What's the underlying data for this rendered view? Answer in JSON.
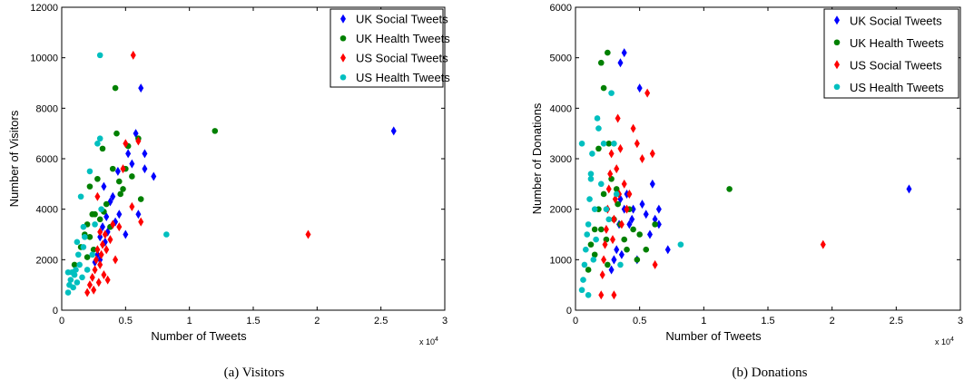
{
  "colors": {
    "uk_social": "#0000ff",
    "uk_health": "#008000",
    "us_social": "#ff0000",
    "us_health": "#00bfbf"
  },
  "chart_data": [
    {
      "type": "scatter",
      "caption": "(a) Visitors",
      "xlabel": "Number of Tweets",
      "ylabel": "Number of Visitors",
      "x_multiplier": "x 10",
      "x_multiplier_exp": "4",
      "xlim": [
        0,
        3
      ],
      "ylim": [
        0,
        12000
      ],
      "xticks": [
        0,
        0.5,
        1,
        1.5,
        2,
        2.5,
        3
      ],
      "xtick_labels": [
        "0",
        "0.5",
        "1",
        "1.5",
        "2",
        "2.5",
        "3"
      ],
      "yticks": [
        0,
        2000,
        4000,
        6000,
        8000,
        10000,
        12000
      ],
      "ytick_labels": [
        "0",
        "2000",
        "4000",
        "6000",
        "8000",
        "10000",
        "12000"
      ],
      "legend_position": "top-right",
      "series": [
        {
          "name": "UK Social Tweets",
          "marker": "diamond",
          "color_key": "uk_social",
          "points": [
            [
              0.28,
              2200
            ],
            [
              0.3,
              2900
            ],
            [
              0.32,
              3300
            ],
            [
              0.33,
              4900
            ],
            [
              0.35,
              3700
            ],
            [
              0.36,
              3100
            ],
            [
              0.38,
              4300
            ],
            [
              0.4,
              4500
            ],
            [
              0.42,
              3500
            ],
            [
              0.44,
              5500
            ],
            [
              0.45,
              3800
            ],
            [
              0.5,
              3000
            ],
            [
              0.52,
              6200
            ],
            [
              0.55,
              5800
            ],
            [
              0.58,
              7000
            ],
            [
              0.6,
              3800
            ],
            [
              0.62,
              8800
            ],
            [
              0.65,
              6200
            ],
            [
              0.65,
              5600
            ],
            [
              0.72,
              5300
            ],
            [
              2.6,
              7100
            ],
            [
              0.3,
              2000
            ],
            [
              0.34,
              2700
            ],
            [
              0.26,
              1900
            ]
          ]
        },
        {
          "name": "UK Health Tweets",
          "marker": "circle",
          "color_key": "uk_health",
          "points": [
            [
              0.1,
              1800
            ],
            [
              0.15,
              2500
            ],
            [
              0.18,
              3000
            ],
            [
              0.2,
              3400
            ],
            [
              0.22,
              2900
            ],
            [
              0.22,
              4900
            ],
            [
              0.24,
              3800
            ],
            [
              0.25,
              2400
            ],
            [
              0.28,
              5200
            ],
            [
              0.3,
              3600
            ],
            [
              0.32,
              6400
            ],
            [
              0.35,
              4200
            ],
            [
              0.38,
              3300
            ],
            [
              0.4,
              5600
            ],
            [
              0.42,
              8800
            ],
            [
              0.43,
              7000
            ],
            [
              0.45,
              5100
            ],
            [
              0.48,
              4800
            ],
            [
              0.5,
              5600
            ],
            [
              0.52,
              6500
            ],
            [
              0.55,
              5300
            ],
            [
              0.62,
              4400
            ],
            [
              0.6,
              6800
            ],
            [
              1.2,
              7100
            ],
            [
              0.2,
              2100
            ],
            [
              0.26,
              3800
            ],
            [
              0.33,
              3900
            ],
            [
              0.46,
              4600
            ]
          ]
        },
        {
          "name": "US Social Tweets",
          "marker": "diamond",
          "color_key": "us_social",
          "points": [
            [
              0.2,
              700
            ],
            [
              0.22,
              1000
            ],
            [
              0.24,
              1300
            ],
            [
              0.26,
              1600
            ],
            [
              0.27,
              2000
            ],
            [
              0.28,
              2400
            ],
            [
              0.29,
              1100
            ],
            [
              0.3,
              1800
            ],
            [
              0.31,
              2200
            ],
            [
              0.32,
              2600
            ],
            [
              0.33,
              1400
            ],
            [
              0.34,
              3000
            ],
            [
              0.35,
              2400
            ],
            [
              0.36,
              1200
            ],
            [
              0.38,
              2800
            ],
            [
              0.4,
              3400
            ],
            [
              0.42,
              2000
            ],
            [
              0.45,
              3300
            ],
            [
              0.48,
              5600
            ],
            [
              0.5,
              6600
            ],
            [
              0.55,
              4100
            ],
            [
              0.56,
              10100
            ],
            [
              0.6,
              6700
            ],
            [
              0.62,
              3500
            ],
            [
              1.93,
              3000
            ],
            [
              0.28,
              4500
            ],
            [
              0.3,
              3100
            ],
            [
              0.25,
              800
            ]
          ]
        },
        {
          "name": "US Health Tweets",
          "marker": "circle",
          "color_key": "us_health",
          "points": [
            [
              0.05,
              700
            ],
            [
              0.06,
              1000
            ],
            [
              0.07,
              1200
            ],
            [
              0.08,
              1500
            ],
            [
              0.09,
              900
            ],
            [
              0.1,
              1400
            ],
            [
              0.11,
              1600
            ],
            [
              0.12,
              1100
            ],
            [
              0.13,
              2200
            ],
            [
              0.14,
              1800
            ],
            [
              0.15,
              4500
            ],
            [
              0.16,
              1300
            ],
            [
              0.17,
              2500
            ],
            [
              0.18,
              2900
            ],
            [
              0.2,
              1600
            ],
            [
              0.22,
              5500
            ],
            [
              0.24,
              2200
            ],
            [
              0.26,
              3400
            ],
            [
              0.28,
              6600
            ],
            [
              0.3,
              6800
            ],
            [
              0.31,
              4000
            ],
            [
              0.3,
              10100
            ],
            [
              0.82,
              3000
            ],
            [
              0.12,
              2700
            ],
            [
              0.17,
              3300
            ],
            [
              0.05,
              1500
            ]
          ]
        }
      ]
    },
    {
      "type": "scatter",
      "caption": "(b) Donations",
      "xlabel": "Number of Tweets",
      "ylabel": "Number of Donations",
      "x_multiplier": "x 10",
      "x_multiplier_exp": "4",
      "xlim": [
        0,
        3
      ],
      "ylim": [
        0,
        6000
      ],
      "xticks": [
        0,
        0.5,
        1,
        1.5,
        2,
        2.5,
        3
      ],
      "xtick_labels": [
        "0",
        "0.5",
        "1",
        "1.5",
        "2",
        "2.5",
        "3"
      ],
      "yticks": [
        0,
        1000,
        2000,
        3000,
        4000,
        5000,
        6000
      ],
      "ytick_labels": [
        "0",
        "1000",
        "2000",
        "3000",
        "4000",
        "5000",
        "6000"
      ],
      "legend_position": "top-right",
      "series": [
        {
          "name": "UK Social Tweets",
          "marker": "diamond",
          "color_key": "uk_social",
          "points": [
            [
              0.28,
              800
            ],
            [
              0.3,
              1000
            ],
            [
              0.32,
              1200
            ],
            [
              0.34,
              1700
            ],
            [
              0.35,
              2200
            ],
            [
              0.36,
              1100
            ],
            [
              0.38,
              2000
            ],
            [
              0.4,
              2300
            ],
            [
              0.42,
              1700
            ],
            [
              0.44,
              1800
            ],
            [
              0.45,
              2000
            ],
            [
              0.48,
              1000
            ],
            [
              0.5,
              4400
            ],
            [
              0.52,
              2100
            ],
            [
              0.55,
              1900
            ],
            [
              0.58,
              1500
            ],
            [
              0.6,
              2500
            ],
            [
              0.62,
              1800
            ],
            [
              0.65,
              1700
            ],
            [
              0.65,
              2000
            ],
            [
              0.72,
              1200
            ],
            [
              2.6,
              2400
            ],
            [
              0.35,
              4900
            ],
            [
              0.38,
              5100
            ],
            [
              0.3,
              1000
            ]
          ]
        },
        {
          "name": "UK Health Tweets",
          "marker": "circle",
          "color_key": "uk_health",
          "points": [
            [
              0.1,
              800
            ],
            [
              0.12,
              1300
            ],
            [
              0.15,
              1100
            ],
            [
              0.18,
              2000
            ],
            [
              0.18,
              3200
            ],
            [
              0.2,
              1600
            ],
            [
              0.2,
              4900
            ],
            [
              0.22,
              4400
            ],
            [
              0.22,
              2300
            ],
            [
              0.24,
              1400
            ],
            [
              0.25,
              5100
            ],
            [
              0.26,
              3300
            ],
            [
              0.28,
              2600
            ],
            [
              0.3,
              1800
            ],
            [
              0.32,
              2400
            ],
            [
              0.35,
              1700
            ],
            [
              0.38,
              1400
            ],
            [
              0.4,
              1200
            ],
            [
              0.42,
              2000
            ],
            [
              0.45,
              1600
            ],
            [
              0.48,
              1000
            ],
            [
              0.5,
              1500
            ],
            [
              0.55,
              1200
            ],
            [
              0.62,
              1700
            ],
            [
              1.2,
              2400
            ],
            [
              0.15,
              1600
            ],
            [
              0.25,
              900
            ],
            [
              0.33,
              2100
            ]
          ]
        },
        {
          "name": "US Social Tweets",
          "marker": "diamond",
          "color_key": "us_social",
          "points": [
            [
              0.2,
              300
            ],
            [
              0.21,
              700
            ],
            [
              0.22,
              1000
            ],
            [
              0.23,
              1300
            ],
            [
              0.24,
              1600
            ],
            [
              0.25,
              2000
            ],
            [
              0.26,
              2400
            ],
            [
              0.27,
              2700
            ],
            [
              0.28,
              3100
            ],
            [
              0.29,
              1400
            ],
            [
              0.3,
              1800
            ],
            [
              0.31,
              2200
            ],
            [
              0.32,
              2800
            ],
            [
              0.33,
              3800
            ],
            [
              0.34,
              2300
            ],
            [
              0.35,
              3200
            ],
            [
              0.36,
              1700
            ],
            [
              0.38,
              2500
            ],
            [
              0.4,
              2000
            ],
            [
              0.42,
              2300
            ],
            [
              0.45,
              3600
            ],
            [
              0.48,
              3300
            ],
            [
              0.52,
              3000
            ],
            [
              0.56,
              4300
            ],
            [
              0.6,
              3100
            ],
            [
              0.62,
              900
            ],
            [
              1.93,
              1300
            ],
            [
              0.3,
              300
            ]
          ]
        },
        {
          "name": "US Health Tweets",
          "marker": "circle",
          "color_key": "us_health",
          "points": [
            [
              0.05,
              400
            ],
            [
              0.06,
              600
            ],
            [
              0.07,
              900
            ],
            [
              0.08,
              1200
            ],
            [
              0.09,
              1500
            ],
            [
              0.1,
              1700
            ],
            [
              0.11,
              2200
            ],
            [
              0.12,
              2700
            ],
            [
              0.13,
              3100
            ],
            [
              0.14,
              1000
            ],
            [
              0.15,
              2000
            ],
            [
              0.16,
              1400
            ],
            [
              0.17,
              3800
            ],
            [
              0.18,
              3600
            ],
            [
              0.2,
              2500
            ],
            [
              0.22,
              3300
            ],
            [
              0.24,
              2000
            ],
            [
              0.26,
              1800
            ],
            [
              0.28,
              4300
            ],
            [
              0.3,
              3300
            ],
            [
              0.32,
              2300
            ],
            [
              0.35,
              900
            ],
            [
              0.82,
              1300
            ],
            [
              0.1,
              300
            ],
            [
              0.05,
              3300
            ],
            [
              0.12,
              2600
            ]
          ]
        }
      ]
    }
  ]
}
